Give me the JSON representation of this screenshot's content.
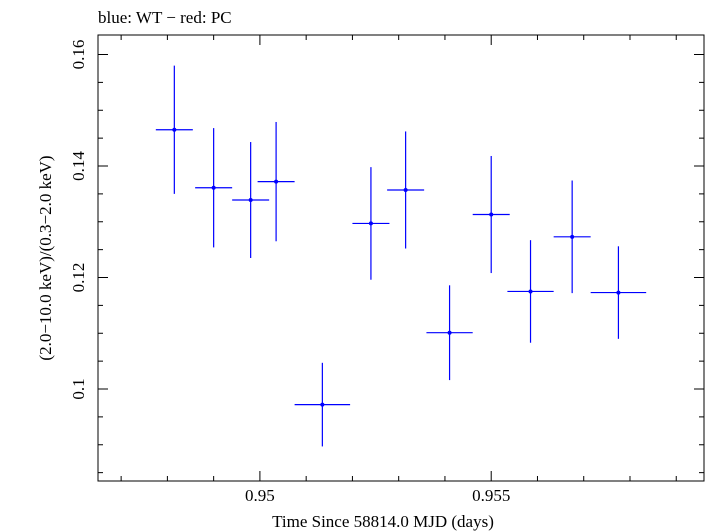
{
  "chart_data": {
    "type": "scatter",
    "title": "blue: WT − red: PC",
    "xlabel": "Time Since 58814.0 MJD (days)",
    "ylabel": "(2.0−10.0 keV)/(0.3−2.0 keV)",
    "xlim": [
      0.9465,
      0.9596
    ],
    "ylim": [
      0.0835,
      0.1635
    ],
    "x_ticks": [
      0.95,
      0.955
    ],
    "x_tick_labels": [
      "0.95",
      "0.955"
    ],
    "y_ticks": [
      0.1,
      0.12,
      0.14,
      0.16
    ],
    "y_tick_labels": [
      "0.1",
      "0.12",
      "0.14",
      "0.16"
    ],
    "grid": false,
    "legend": "none",
    "colors": {
      "WT": "#0000ff",
      "axis": "#000000"
    },
    "series": [
      {
        "color": "#0000ff",
        "points": [
          {
            "x": 0.94815,
            "xerr": 0.0004,
            "y": 0.1465,
            "yerr": 0.0115
          },
          {
            "x": 0.949,
            "xerr": 0.0004,
            "y": 0.1361,
            "yerr": 0.0107
          },
          {
            "x": 0.9498,
            "xerr": 0.0004,
            "y": 0.1339,
            "yerr": 0.0104
          },
          {
            "x": 0.95035,
            "xerr": 0.0004,
            "y": 0.1372,
            "yerr": 0.0107
          },
          {
            "x": 0.95135,
            "xerr": 0.0006,
            "y": 0.0972,
            "yerr": 0.0075
          },
          {
            "x": 0.9524,
            "xerr": 0.0004,
            "y": 0.1297,
            "yerr": 0.0101
          },
          {
            "x": 0.95315,
            "xerr": 0.0004,
            "y": 0.1357,
            "yerr": 0.0105
          },
          {
            "x": 0.9541,
            "xerr": 0.0005,
            "y": 0.1101,
            "yerr": 0.0085
          },
          {
            "x": 0.955,
            "xerr": 0.0004,
            "y": 0.1313,
            "yerr": 0.0105
          },
          {
            "x": 0.95585,
            "xerr": 0.0005,
            "y": 0.1175,
            "yerr": 0.0092
          },
          {
            "x": 0.95675,
            "xerr": 0.0004,
            "y": 0.1273,
            "yerr": 0.0101
          },
          {
            "x": 0.95775,
            "xerr": 0.0006,
            "y": 0.1173,
            "yerr": 0.0083
          }
        ]
      }
    ]
  }
}
